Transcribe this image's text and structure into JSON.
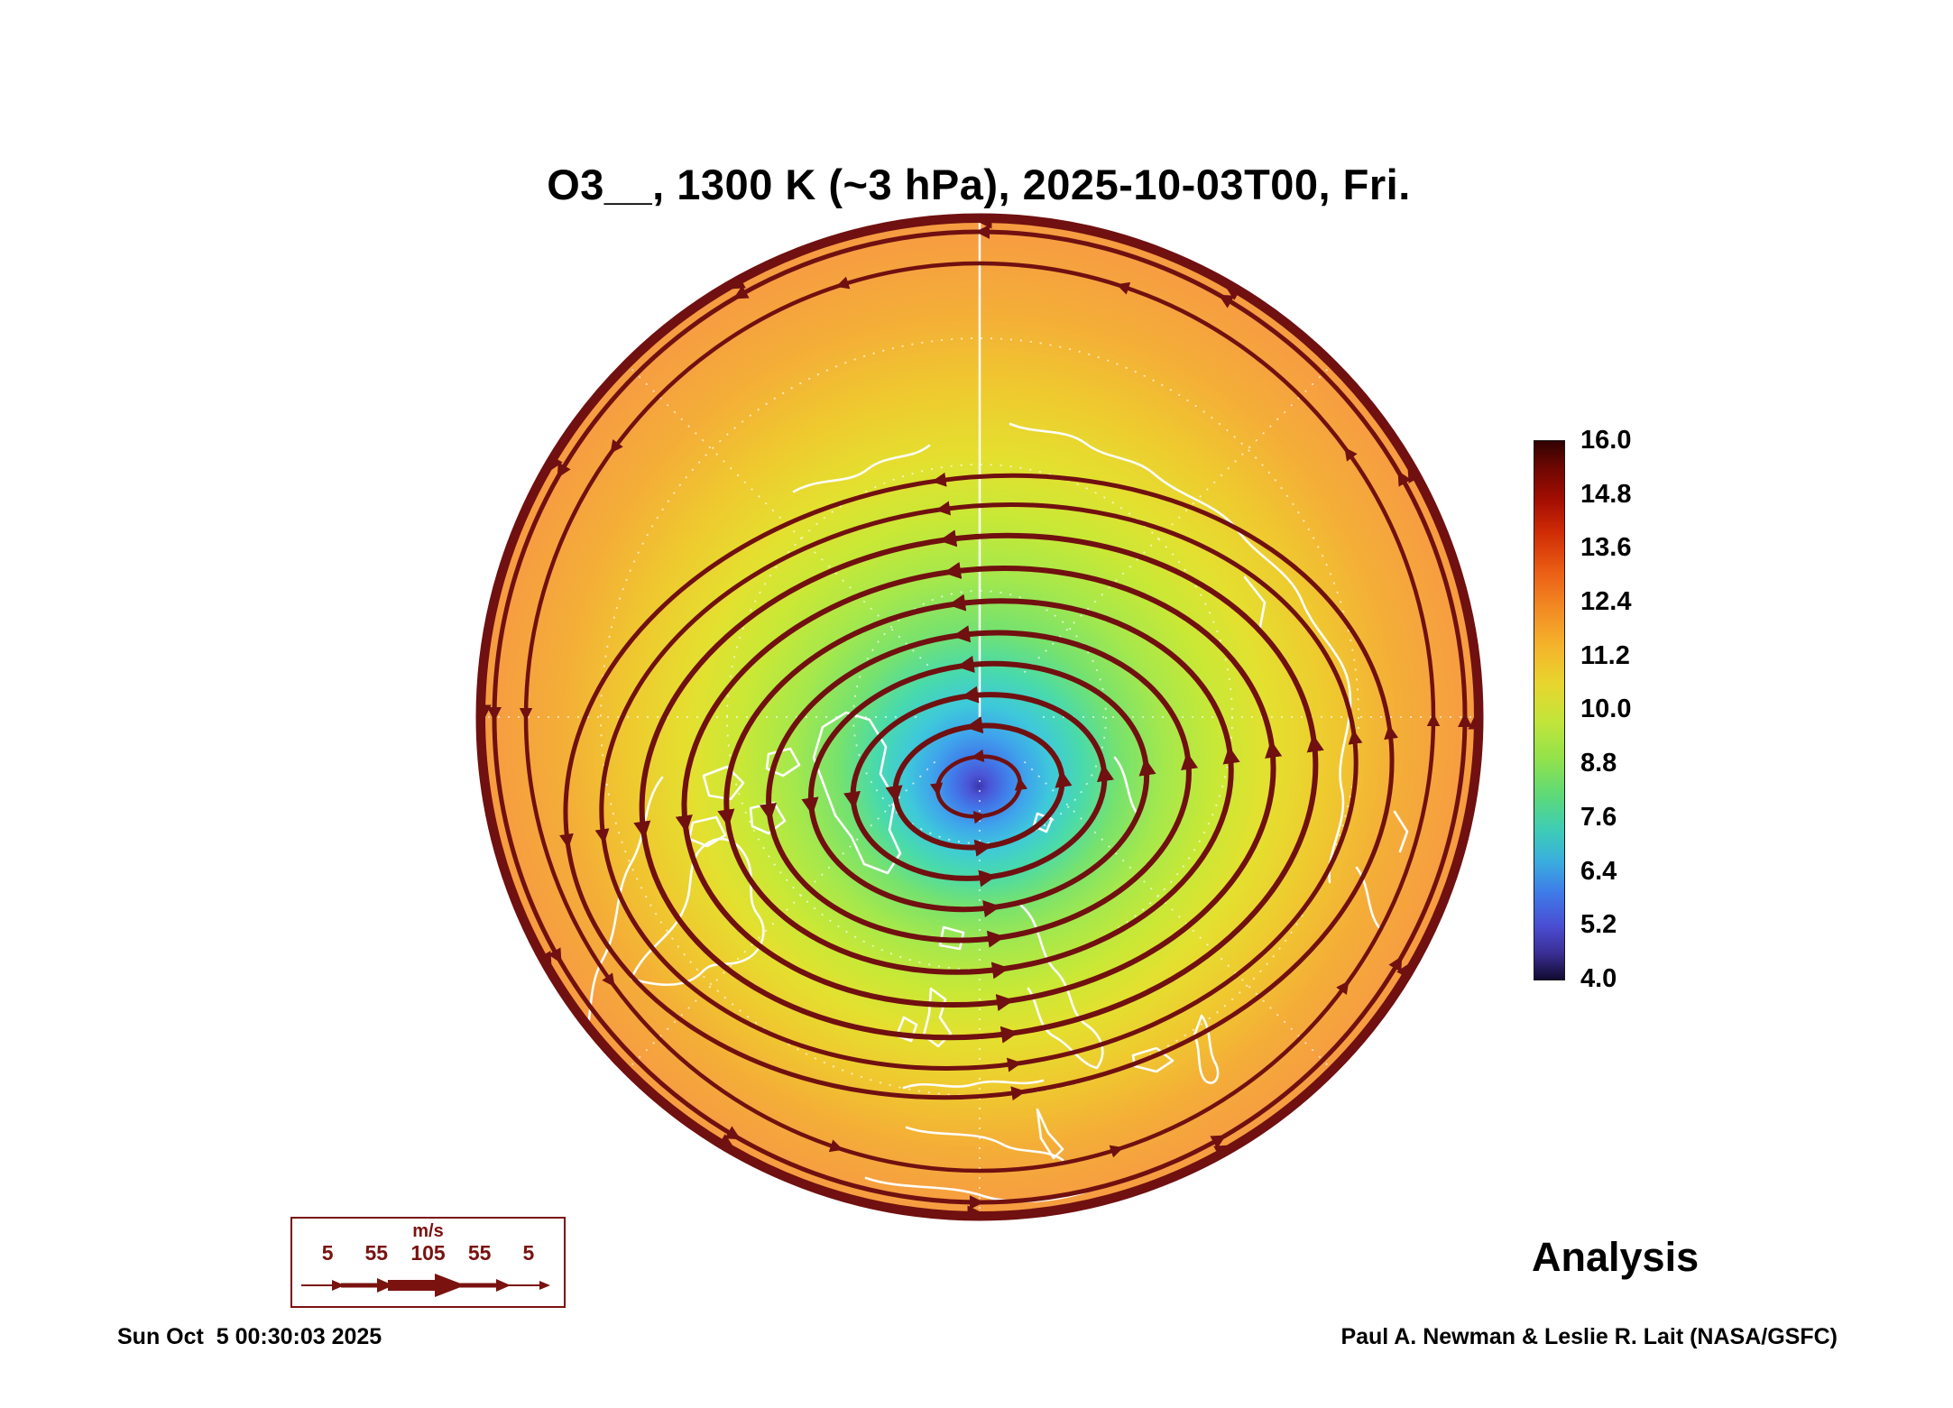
{
  "title": "O3__, 1300 K (~3 hPa), 2025-10-03T00, Fri.",
  "analysis_label": "Analysis",
  "footer": {
    "timestamp": "Sun Oct  5 00:30:03 2025",
    "credit": "Paul A. Newman & Leslie R. Lait (NASA/GSFC)"
  },
  "colorbar": {
    "min": 4.0,
    "max": 16.0,
    "ticks": [
      "16.0",
      "14.8",
      "13.6",
      "12.4",
      "11.2",
      "10.0",
      "8.8",
      "7.6",
      "6.4",
      "5.2",
      "4.0"
    ],
    "gradient_css": "linear-gradient(180deg,#300202 0%,#6f0703 5%,#a30e02 11%,#cf2c06 17%,#ea5c14 24%,#f28a24 31%,#f4b32b 38%,#e8d52e 45%,#c3e53a 52%,#92e24b 59%,#5cd97a 66%,#3fcdb4 72%,#3aaede 78%,#3f7ae8 84%,#4a4ed2 90%,#3b2f96 95%,#120b30 100%)"
  },
  "wind_legend": {
    "units": "m/s",
    "values": [
      "5",
      "55",
      "105",
      "55",
      "5"
    ],
    "color": "#7a1210"
  },
  "colors": {
    "streamline": "#701010",
    "coastline": "#ffffff",
    "graticule": "#ffffff",
    "background": "#ffffff",
    "title_text": "#000000"
  },
  "chart_data": {
    "type": "heatmap",
    "title": "O3__, 1300 K (~3 hPa), 2025-10-03T00, Fri.",
    "variable": "O3 (ozone mixing ratio)",
    "vertical_level": "1300 K (~3 hPa)",
    "valid_time": "2025-10-03T00",
    "weekday": "Fri.",
    "run_type": "Analysis",
    "projection": "Northern Hemisphere polar stereographic",
    "colorbar_range": [
      4.0,
      16.0
    ],
    "colorbar_ticks": [
      16.0,
      14.8,
      13.6,
      12.4,
      11.2,
      10.0,
      8.8,
      7.6,
      6.4,
      5.2,
      4.0
    ],
    "field_structure": {
      "description": "Low-ozone polar vortex core (dark blue/purple, ~4-6) slightly offset from the pole toward the Greenland/North Atlantic side; values increase outward through green (~9-10) to yellow-orange (~11-12.5) at the low-latitude edge of the map.",
      "vortex_core_value": 4.8,
      "edge_value": 12.4,
      "radial_profile": [
        {
          "normalized_radius": 0.0,
          "value": 4.8
        },
        {
          "normalized_radius": 0.1,
          "value": 6.2
        },
        {
          "normalized_radius": 0.2,
          "value": 7.6
        },
        {
          "normalized_radius": 0.35,
          "value": 9.4
        },
        {
          "normalized_radius": 0.5,
          "value": 10.4
        },
        {
          "normalized_radius": 0.7,
          "value": 11.4
        },
        {
          "normalized_radius": 0.85,
          "value": 12.0
        },
        {
          "normalized_radius": 1.0,
          "value": 12.4
        }
      ]
    },
    "overlays": [
      {
        "name": "wind-streamlines",
        "color": "#701010",
        "pattern": "closed cyclonic loops with arrowheads circling the vortex core, circumpolar flow near the map rim"
      },
      {
        "name": "coastlines",
        "color": "#ffffff"
      },
      {
        "name": "graticule",
        "color": "#ffffff",
        "style": "dotted latitude circles and meridians, solid meridian from top rim to pole"
      }
    ],
    "wind_speed_legend": {
      "units": "m/s",
      "values": [
        5,
        55,
        105,
        55,
        5
      ]
    }
  }
}
